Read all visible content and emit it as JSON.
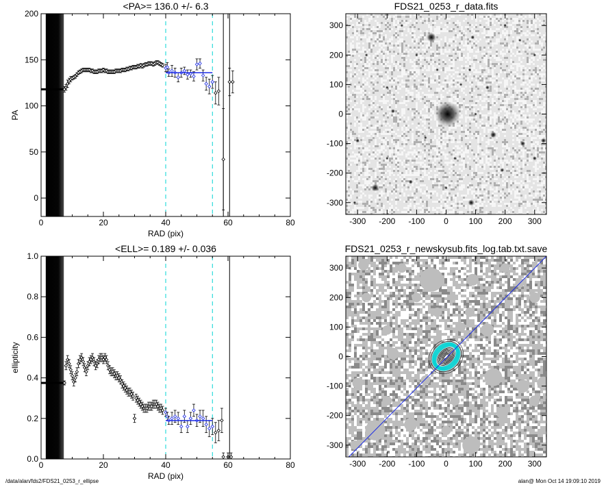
{
  "footer": {
    "path": "/data/alan/fds2/FDS21_0253_r_ellipse",
    "stamp": "alan@  Mon Oct 14 19:09:10 2019"
  },
  "colors": {
    "guide_line": "#00d4d4",
    "fit_line": "#1a2ae6",
    "dark_band": "#050505",
    "image_bg": "#c9c9c9"
  },
  "chart_data": [
    {
      "id": "pa",
      "type": "scatter",
      "title": "<PA>= 136.0 +/-   6.3",
      "xlabel": "RAD (pix)",
      "ylabel": "PA",
      "xlim": [
        0,
        80
      ],
      "ylim": [
        -20,
        200
      ],
      "xticks": [
        0,
        20,
        40,
        60,
        80
      ],
      "yticks": [
        0,
        50,
        100,
        150,
        200
      ],
      "guides_x": [
        40,
        55
      ],
      "solid_lines_x": [
        58.5,
        60.5
      ],
      "fit": {
        "x": [
          40,
          55
        ],
        "y": 136.0
      },
      "mean": 136.0,
      "sigma": 6.3,
      "inner_flat": {
        "x": [
          0,
          7.5
        ],
        "y": 118
      },
      "points": [
        [
          7.5,
          118,
          3
        ],
        [
          8,
          120,
          3
        ],
        [
          8.5,
          124,
          4
        ],
        [
          9,
          127,
          3
        ],
        [
          9.5,
          129,
          3
        ],
        [
          10,
          130,
          2
        ],
        [
          10.5,
          131,
          2
        ],
        [
          11,
          132,
          2
        ],
        [
          11.5,
          134,
          2
        ],
        [
          12,
          136,
          2
        ],
        [
          12.5,
          137,
          2
        ],
        [
          13,
          138,
          2
        ],
        [
          13.5,
          139,
          2
        ],
        [
          14,
          139,
          2
        ],
        [
          14.5,
          139,
          2
        ],
        [
          15,
          139,
          2
        ],
        [
          15.5,
          139,
          2
        ],
        [
          16,
          138,
          2
        ],
        [
          16.5,
          138,
          2
        ],
        [
          17,
          137,
          2
        ],
        [
          17.5,
          137,
          2
        ],
        [
          18,
          137,
          2
        ],
        [
          18.5,
          138,
          2
        ],
        [
          19,
          138,
          2
        ],
        [
          19.5,
          138,
          2
        ],
        [
          20,
          139,
          2
        ],
        [
          20.5,
          138,
          2
        ],
        [
          21,
          138,
          2
        ],
        [
          21.5,
          137,
          2
        ],
        [
          22,
          137,
          2
        ],
        [
          22.5,
          137,
          2
        ],
        [
          23,
          137,
          2
        ],
        [
          23.5,
          137,
          2
        ],
        [
          24,
          138,
          2
        ],
        [
          24.5,
          138,
          2
        ],
        [
          25,
          138,
          2
        ],
        [
          25.5,
          138,
          2
        ],
        [
          26,
          139,
          2
        ],
        [
          26.5,
          139,
          2
        ],
        [
          27,
          139,
          2
        ],
        [
          27.5,
          140,
          2
        ],
        [
          28,
          140,
          2
        ],
        [
          28.5,
          141,
          2
        ],
        [
          29,
          141,
          2
        ],
        [
          29.5,
          142,
          2
        ],
        [
          30,
          142,
          2
        ],
        [
          30.5,
          142,
          2
        ],
        [
          31,
          143,
          2
        ],
        [
          31.5,
          143,
          2
        ],
        [
          32,
          144,
          2
        ],
        [
          32.5,
          143,
          2
        ],
        [
          33,
          144,
          2
        ],
        [
          33.5,
          145,
          2
        ],
        [
          34,
          145,
          2
        ],
        [
          34.5,
          146,
          2
        ],
        [
          35,
          146,
          2
        ],
        [
          35.5,
          146,
          2
        ],
        [
          36,
          145,
          2
        ],
        [
          36.5,
          146,
          2
        ],
        [
          37,
          147,
          2
        ],
        [
          37.5,
          147,
          2
        ],
        [
          38,
          146,
          2
        ],
        [
          38.5,
          145,
          2
        ],
        [
          39,
          144,
          2
        ],
        [
          40,
          141,
          4
        ],
        [
          40.5,
          142,
          5
        ],
        [
          41,
          136,
          4
        ],
        [
          42,
          138,
          6
        ],
        [
          43,
          136,
          5
        ],
        [
          44,
          131,
          5
        ],
        [
          45,
          136,
          5
        ],
        [
          46,
          138,
          4
        ],
        [
          47,
          134,
          5
        ],
        [
          48,
          135,
          4
        ],
        [
          49,
          132,
          5
        ],
        [
          50,
          145,
          6
        ],
        [
          51,
          146,
          5
        ],
        [
          52,
          133,
          6
        ],
        [
          53,
          124,
          7
        ],
        [
          54,
          121,
          8
        ],
        [
          55,
          126,
          7
        ],
        [
          56,
          114,
          12
        ],
        [
          57,
          116,
          15
        ],
        [
          58.5,
          42,
          55
        ],
        [
          60.5,
          126,
          15
        ],
        [
          61.5,
          126,
          12
        ]
      ]
    },
    {
      "id": "ell",
      "type": "scatter",
      "title": "<ELL>= 0.189 +/-  0.036",
      "xlabel": "RAD (pix)",
      "ylabel": "ellipticity",
      "xlim": [
        0,
        80
      ],
      "ylim": [
        0,
        1
      ],
      "xticks": [
        0,
        20,
        40,
        60,
        80
      ],
      "yticks": [
        0.0,
        0.2,
        0.4,
        0.6,
        0.8,
        1.0
      ],
      "guides_x": [
        40,
        55
      ],
      "solid_lines_x": [
        60.5
      ],
      "fit": {
        "x": [
          40,
          55
        ],
        "y": 0.189
      },
      "mean": 0.189,
      "sigma": 0.036,
      "inner_flat": {
        "x": [
          0,
          7.5
        ],
        "y": 0.375
      },
      "points": [
        [
          7.5,
          0.375,
          0.01
        ],
        [
          8,
          0.46,
          0.02
        ],
        [
          8.5,
          0.49,
          0.02
        ],
        [
          9,
          0.47,
          0.02
        ],
        [
          9.5,
          0.44,
          0.02
        ],
        [
          10,
          0.41,
          0.02
        ],
        [
          10.5,
          0.38,
          0.02
        ],
        [
          11,
          0.4,
          0.02
        ],
        [
          11.5,
          0.43,
          0.02
        ],
        [
          12,
          0.47,
          0.02
        ],
        [
          12.5,
          0.49,
          0.02
        ],
        [
          13,
          0.5,
          0.02
        ],
        [
          13.5,
          0.48,
          0.02
        ],
        [
          14,
          0.45,
          0.02
        ],
        [
          14.5,
          0.43,
          0.02
        ],
        [
          15,
          0.46,
          0.02
        ],
        [
          15.5,
          0.48,
          0.02
        ],
        [
          16,
          0.49,
          0.02
        ],
        [
          16.5,
          0.5,
          0.02
        ],
        [
          17,
          0.48,
          0.02
        ],
        [
          17.5,
          0.46,
          0.02
        ],
        [
          18,
          0.47,
          0.02
        ],
        [
          18.5,
          0.49,
          0.02
        ],
        [
          19,
          0.5,
          0.02
        ],
        [
          19.5,
          0.5,
          0.02
        ],
        [
          20,
          0.49,
          0.02
        ],
        [
          20.5,
          0.5,
          0.02
        ],
        [
          21,
          0.49,
          0.02
        ],
        [
          21.5,
          0.46,
          0.02
        ],
        [
          22,
          0.44,
          0.02
        ],
        [
          22.5,
          0.43,
          0.02
        ],
        [
          23,
          0.43,
          0.02
        ],
        [
          23.5,
          0.42,
          0.02
        ],
        [
          24,
          0.41,
          0.02
        ],
        [
          24.5,
          0.41,
          0.02
        ],
        [
          25,
          0.4,
          0.02
        ],
        [
          25.5,
          0.39,
          0.02
        ],
        [
          26,
          0.37,
          0.02
        ],
        [
          26.5,
          0.36,
          0.02
        ],
        [
          27,
          0.35,
          0.02
        ],
        [
          27.5,
          0.34,
          0.02
        ],
        [
          28,
          0.33,
          0.02
        ],
        [
          28.5,
          0.33,
          0.02
        ],
        [
          29,
          0.32,
          0.02
        ],
        [
          29.5,
          0.31,
          0.02
        ],
        [
          30,
          0.2,
          0.02
        ],
        [
          30.5,
          0.3,
          0.02
        ],
        [
          31,
          0.29,
          0.02
        ],
        [
          31.5,
          0.28,
          0.02
        ],
        [
          32,
          0.27,
          0.02
        ],
        [
          32.5,
          0.26,
          0.02
        ],
        [
          33,
          0.25,
          0.02
        ],
        [
          33.5,
          0.25,
          0.02
        ],
        [
          34,
          0.25,
          0.02
        ],
        [
          34.5,
          0.26,
          0.02
        ],
        [
          35,
          0.26,
          0.02
        ],
        [
          35.5,
          0.26,
          0.02
        ],
        [
          36,
          0.27,
          0.02
        ],
        [
          36.5,
          0.27,
          0.02
        ],
        [
          37,
          0.27,
          0.02
        ],
        [
          37.5,
          0.26,
          0.02
        ],
        [
          38,
          0.25,
          0.02
        ],
        [
          38.5,
          0.25,
          0.02
        ],
        [
          39,
          0.24,
          0.02
        ],
        [
          40,
          0.23,
          0.02
        ],
        [
          40.5,
          0.21,
          0.02
        ],
        [
          41,
          0.19,
          0.02
        ],
        [
          42,
          0.2,
          0.03
        ],
        [
          43,
          0.21,
          0.03
        ],
        [
          44,
          0.2,
          0.03
        ],
        [
          45,
          0.16,
          0.03
        ],
        [
          46,
          0.21,
          0.03
        ],
        [
          47,
          0.16,
          0.03
        ],
        [
          48,
          0.2,
          0.03
        ],
        [
          49,
          0.24,
          0.03
        ],
        [
          50,
          0.19,
          0.03
        ],
        [
          51,
          0.21,
          0.03
        ],
        [
          52,
          0.2,
          0.04
        ],
        [
          53,
          0.17,
          0.04
        ],
        [
          54,
          0.15,
          0.04
        ],
        [
          55,
          0.16,
          0.04
        ],
        [
          56,
          0.13,
          0.05
        ],
        [
          57,
          0.14,
          0.05
        ],
        [
          58,
          0.19,
          0.06
        ],
        [
          58.5,
          0.01,
          0.02
        ],
        [
          60,
          0.01,
          0.02
        ],
        [
          61,
          0.01,
          0.02
        ]
      ]
    },
    {
      "id": "data-image",
      "type": "heatmap",
      "title": "FDS21_0253_r_data.fits",
      "xlim": [
        -340,
        340
      ],
      "ylim": [
        -340,
        340
      ],
      "xticks": [
        -300,
        -200,
        -100,
        0,
        100,
        200,
        300
      ],
      "yticks": [
        -300,
        -200,
        -100,
        0,
        100,
        200,
        300
      ],
      "sources": [
        [
          -50,
          260,
          9
        ],
        [
          5,
          0,
          24
        ],
        [
          90,
          260,
          4
        ],
        [
          85,
          -300,
          6
        ],
        [
          -240,
          -250,
          7
        ],
        [
          160,
          -70,
          6
        ],
        [
          -180,
          10,
          4
        ],
        [
          -120,
          -230,
          4
        ],
        [
          260,
          -100,
          5
        ],
        [
          -300,
          -90,
          4
        ],
        [
          300,
          -150,
          4
        ],
        [
          190,
          -190,
          4
        ],
        [
          -270,
          200,
          3
        ],
        [
          -200,
          90,
          3
        ],
        [
          140,
          90,
          4
        ],
        [
          80,
          150,
          3
        ],
        [
          -30,
          150,
          3
        ],
        [
          30,
          -150,
          3
        ],
        [
          -100,
          200,
          3
        ],
        [
          100,
          0,
          3
        ],
        [
          300,
          200,
          3
        ],
        [
          -310,
          -300,
          3
        ],
        [
          200,
          300,
          3
        ],
        [
          -200,
          -150,
          3
        ],
        [
          250,
          250,
          3
        ],
        [
          -150,
          300,
          3
        ],
        [
          330,
          -90,
          5
        ],
        [
          0,
          -250,
          3
        ],
        [
          50,
          100,
          3
        ],
        [
          -70,
          -80,
          3
        ]
      ]
    },
    {
      "id": "mask-image",
      "type": "heatmap",
      "title": "FDS21_0253_r_newskysub.fits_log.tab.txt.save",
      "xlim": [
        -340,
        340
      ],
      "ylim": [
        -340,
        340
      ],
      "xticks": [
        -300,
        -200,
        -100,
        0,
        100,
        200,
        300
      ],
      "yticks": [
        -300,
        -200,
        -100,
        0,
        100,
        200,
        300
      ],
      "masks": [
        [
          -50,
          260,
          40
        ],
        [
          5,
          0,
          30
        ],
        [
          90,
          260,
          20
        ],
        [
          85,
          -300,
          30
        ],
        [
          -240,
          -250,
          34
        ],
        [
          160,
          -70,
          30
        ],
        [
          -180,
          10,
          20
        ],
        [
          -120,
          -230,
          22
        ],
        [
          260,
          -100,
          22
        ],
        [
          -300,
          -90,
          18
        ],
        [
          300,
          -150,
          18
        ],
        [
          190,
          -190,
          20
        ],
        [
          -270,
          200,
          16
        ],
        [
          -200,
          90,
          16
        ],
        [
          140,
          90,
          22
        ],
        [
          80,
          150,
          16
        ],
        [
          -30,
          150,
          16
        ],
        [
          30,
          -150,
          16
        ],
        [
          -100,
          200,
          16
        ],
        [
          300,
          200,
          18
        ],
        [
          -310,
          -300,
          16
        ],
        [
          200,
          300,
          16
        ],
        [
          -200,
          -150,
          16
        ],
        [
          250,
          250,
          16
        ],
        [
          -150,
          300,
          16
        ],
        [
          330,
          -90,
          22
        ],
        [
          0,
          -250,
          16
        ],
        [
          50,
          100,
          16
        ],
        [
          -70,
          -80,
          16
        ],
        [
          -280,
          310,
          18
        ]
      ],
      "diagonal": {
        "from": [
          -330,
          -340
        ],
        "to": [
          340,
          340
        ]
      }
    }
  ]
}
